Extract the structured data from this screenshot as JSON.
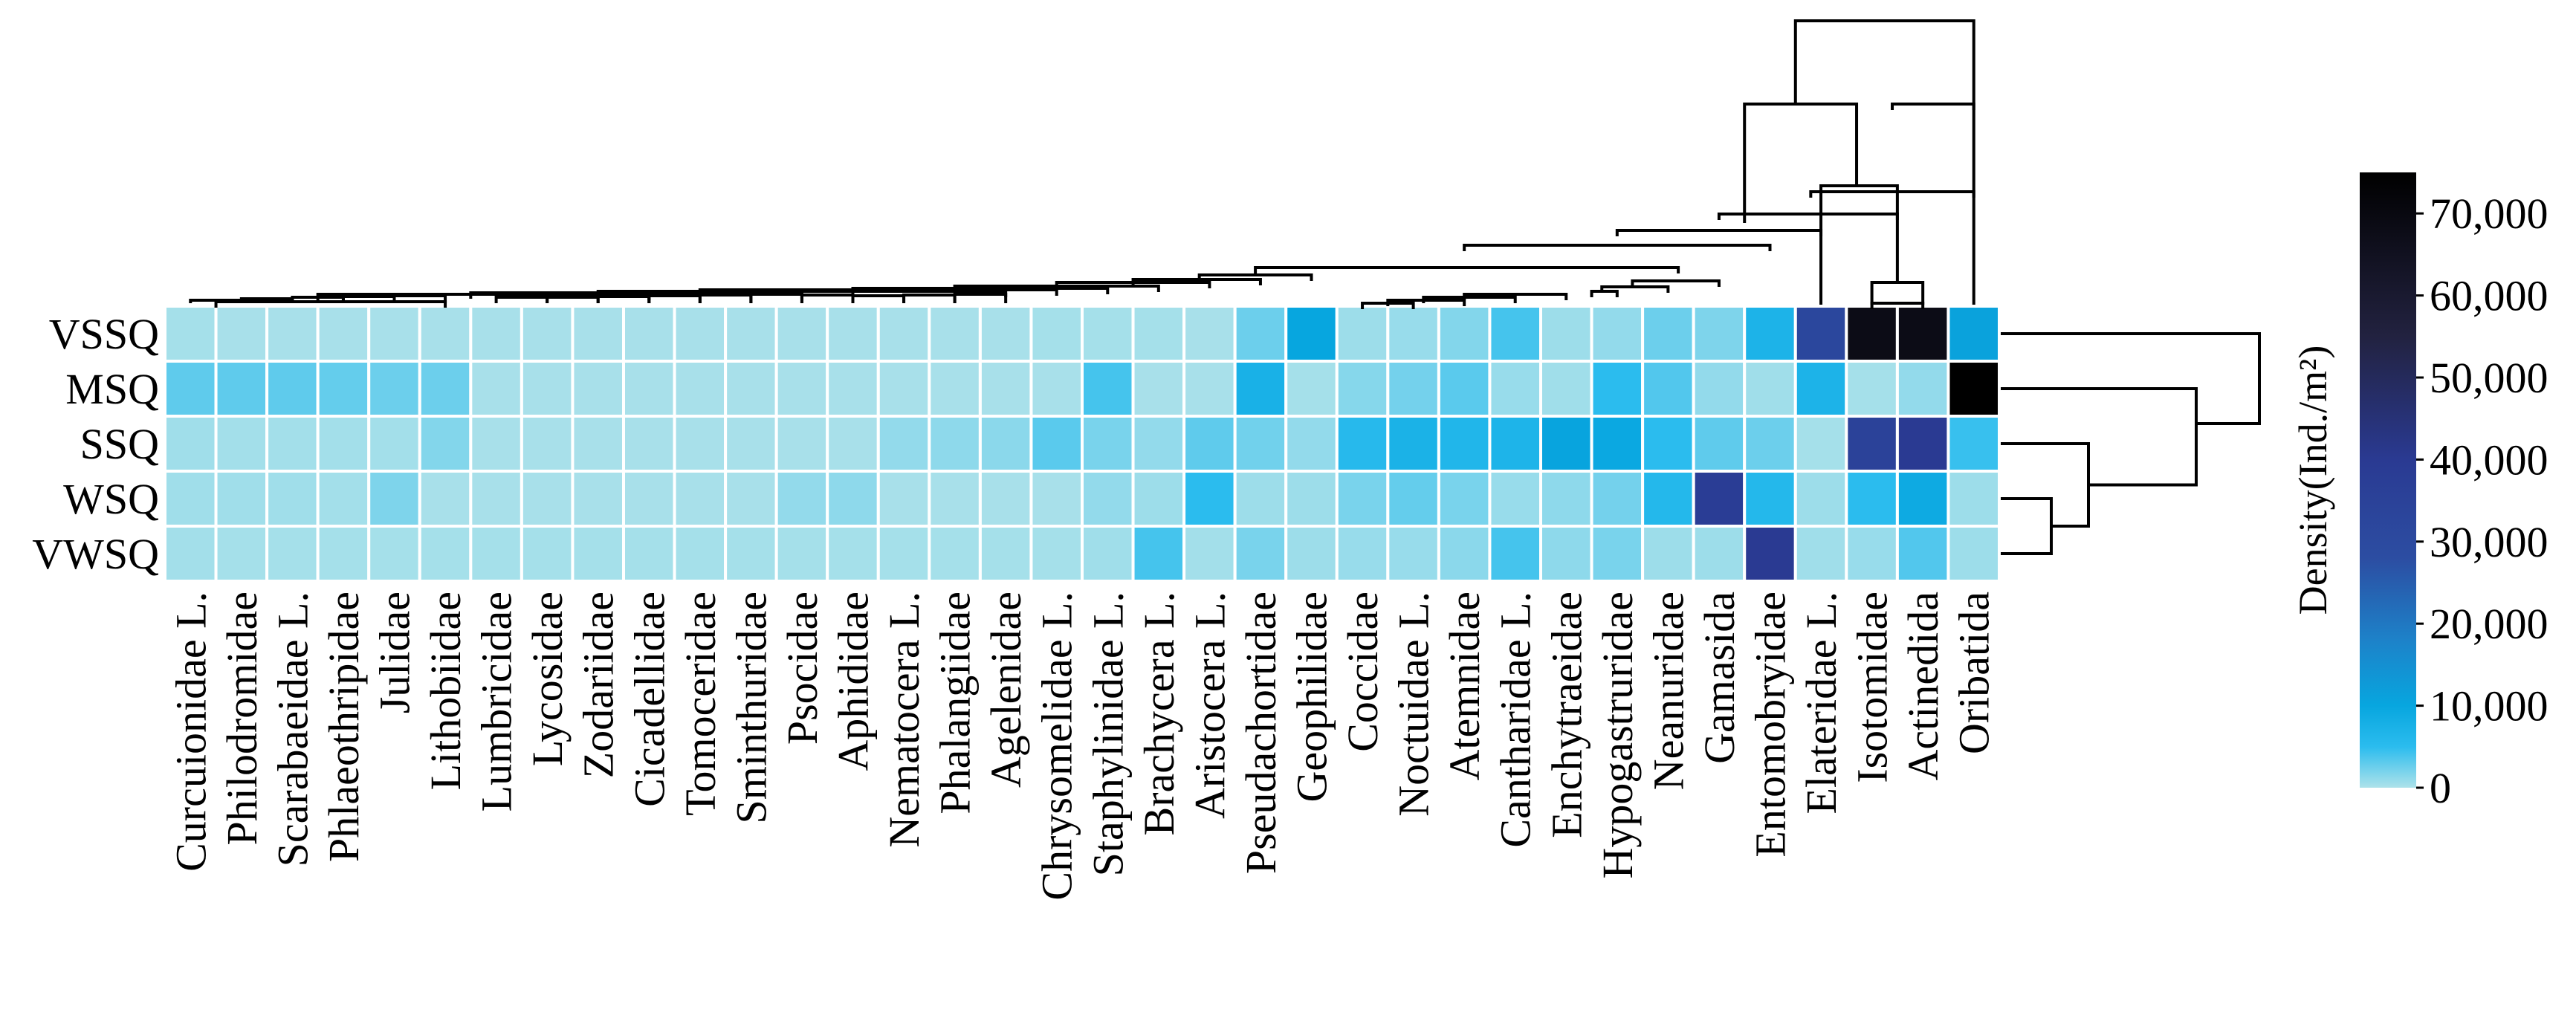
{
  "chart_data": {
    "type": "heatmap",
    "title": "",
    "rows": [
      "VSSQ",
      "MSQ",
      "SSQ",
      "WSQ",
      "VWSQ"
    ],
    "columns": [
      "Curcuionidae L.",
      "Philodromidae",
      "Scarabaeidae L.",
      "Phlaeothripidae",
      "Julidae",
      "Lithobiidae",
      "Lumbricidae",
      "Lycosidae",
      "Zodariidae",
      "Cicadellidae",
      "Tomoceridae",
      "Sminthuridae",
      "Psocidae",
      "Aphididae",
      "Nematocera L.",
      "Phalangiidae",
      "Agelenidae",
      "Chrysomelidae L.",
      "Staphylinidae L.",
      "Brachycera L.",
      "Aristocera L.",
      "Pseudachortidae",
      "Geophilidae",
      "Coccidae",
      "Noctuidae L.",
      "Atemnidae",
      "Cantharidae L.",
      "Enchytraeidae",
      "Hypogastruridae",
      "Neanuridae",
      "Gamasida",
      "Entomobryidae",
      "Elateridae L.",
      "Isotomidae",
      "Actinedida",
      "Oribatida"
    ],
    "values": [
      [
        300,
        200,
        200,
        200,
        200,
        200,
        200,
        200,
        200,
        200,
        200,
        200,
        200,
        200,
        200,
        200,
        200,
        300,
        300,
        300,
        200,
        2500,
        10000,
        600,
        800,
        1600,
        4000,
        600,
        1000,
        2500,
        1800,
        7000,
        32000,
        68000,
        68000,
        11000
      ],
      [
        3000,
        3000,
        3000,
        2800,
        2500,
        2500,
        200,
        200,
        200,
        200,
        200,
        200,
        200,
        200,
        200,
        200,
        200,
        200,
        4000,
        200,
        200,
        7500,
        300,
        1500,
        2200,
        3200,
        800,
        500,
        5000,
        3500,
        1000,
        500,
        7000,
        300,
        1000,
        75000
      ],
      [
        500,
        400,
        400,
        400,
        400,
        1600,
        200,
        200,
        200,
        200,
        200,
        200,
        200,
        200,
        1000,
        1200,
        1300,
        3200,
        2000,
        1000,
        3000,
        2300,
        1000,
        5600,
        7200,
        6400,
        6800,
        10500,
        9500,
        5000,
        3000,
        2500,
        300,
        35000,
        40000,
        4500
      ],
      [
        500,
        500,
        500,
        400,
        1800,
        200,
        200,
        200,
        200,
        200,
        200,
        200,
        1000,
        1200,
        200,
        200,
        200,
        200,
        1000,
        600,
        5000,
        600,
        600,
        2000,
        2800,
        2000,
        800,
        1200,
        2200,
        6000,
        38000,
        6000,
        600,
        5000,
        9000,
        600
      ],
      [
        400,
        300,
        300,
        300,
        300,
        300,
        300,
        300,
        300,
        300,
        300,
        300,
        300,
        300,
        300,
        300,
        300,
        300,
        500,
        4000,
        400,
        2000,
        600,
        800,
        800,
        1300,
        4000,
        1200,
        2000,
        600,
        600,
        40000,
        500,
        800,
        3500,
        600
      ]
    ],
    "colorbar": {
      "label": "Density(Ind./m²)",
      "range": [
        0,
        75000
      ],
      "ticks": [
        0,
        10000,
        20000,
        30000,
        40000,
        50000,
        60000,
        70000
      ],
      "tick_labels": [
        "0",
        "10,000",
        "20,000",
        "30,000",
        "40,000",
        "50,000",
        "60,000",
        "70,000"
      ],
      "stops": [
        {
          "v": 0,
          "c": "#ade2ea"
        },
        {
          "v": 5000,
          "c": "#2bbcee"
        },
        {
          "v": 10000,
          "c": "#07a6df"
        },
        {
          "v": 18000,
          "c": "#1d82c9"
        },
        {
          "v": 28000,
          "c": "#2c4da2"
        },
        {
          "v": 40000,
          "c": "#2a3a92"
        },
        {
          "v": 55000,
          "c": "#222240"
        },
        {
          "v": 75000,
          "c": "#000000"
        }
      ]
    },
    "column_dendrogram": "hierarchical clustering of columns (top)",
    "row_dendrogram": "hierarchical clustering of rows (right)"
  }
}
